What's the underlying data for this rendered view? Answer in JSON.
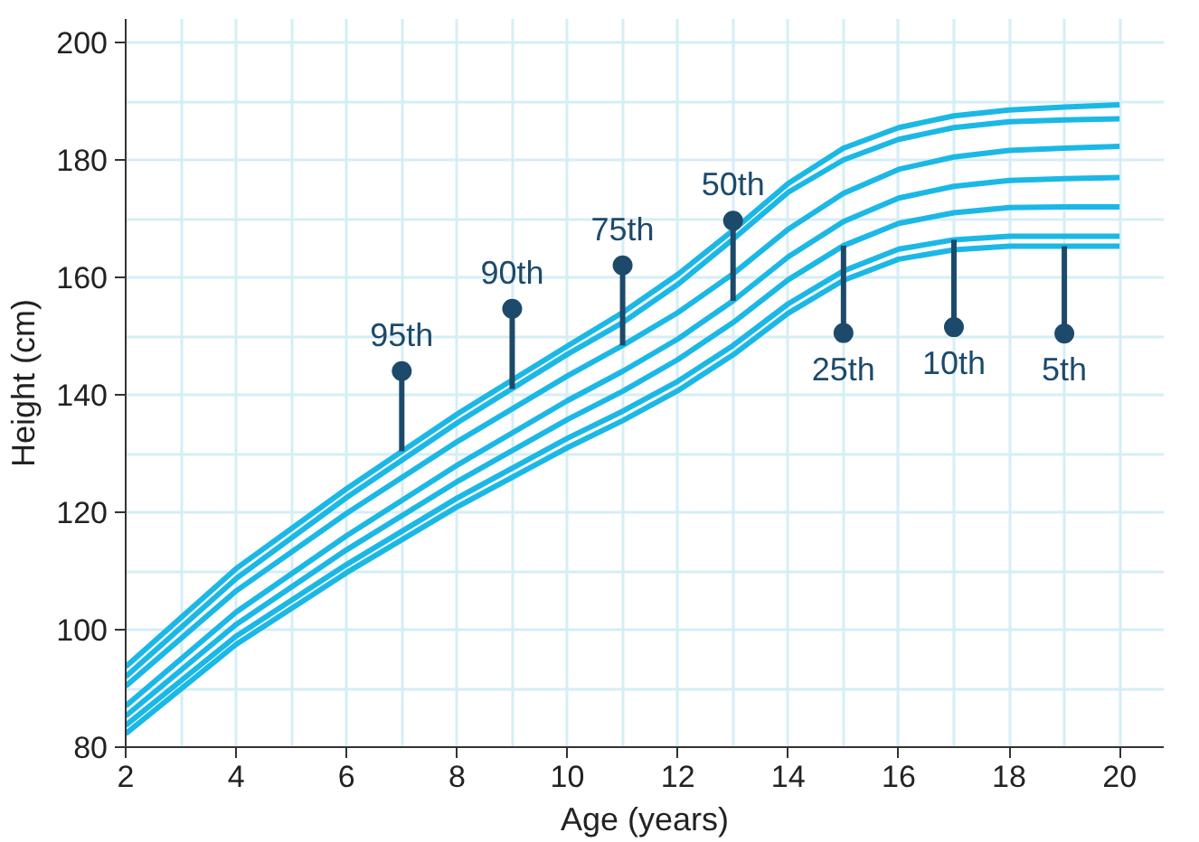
{
  "chart_data": {
    "type": "line",
    "xlabel": "Age (years)",
    "ylabel": "Height (cm)",
    "x": [
      2,
      4,
      6,
      8,
      10,
      11,
      12,
      13,
      14,
      15,
      16,
      17,
      18,
      19,
      20
    ],
    "series": [
      {
        "color": "#1bb8e6",
        "values": [
          93.7,
          110.4,
          124,
          136.7,
          148.3,
          154,
          160.5,
          168,
          176,
          182,
          185.5,
          187.5,
          188.5,
          189,
          189.4
        ]
      },
      {
        "color": "#1bb8e6",
        "values": [
          92,
          108.7,
          122.5,
          135.2,
          146.9,
          152.3,
          158.8,
          166.5,
          174.5,
          180,
          183.5,
          185.5,
          186.5,
          186.8,
          187
        ]
      },
      {
        "color": "#1bb8e6",
        "values": [
          90.4,
          106.6,
          119.8,
          132,
          143.2,
          148.4,
          154,
          160.6,
          168.2,
          174.3,
          178.4,
          180.5,
          181.6,
          182,
          182.3
        ]
      },
      {
        "color": "#1bb8e6",
        "values": [
          87,
          103,
          116,
          128,
          139,
          144,
          149.5,
          156,
          163.5,
          169.5,
          173.5,
          175.5,
          176.5,
          176.8,
          177
        ]
      },
      {
        "color": "#1bb8e6",
        "values": [
          85.3,
          100.9,
          113.6,
          125.2,
          135.8,
          140.6,
          146,
          152.3,
          159.6,
          165.4,
          169.2,
          171,
          171.9,
          172,
          172
        ]
      },
      {
        "color": "#1bb8e6",
        "values": [
          83.7,
          98.9,
          111.1,
          122.4,
          132.6,
          137.2,
          142.3,
          148.4,
          155.5,
          161.1,
          164.8,
          166.4,
          167,
          167,
          167
        ]
      },
      {
        "color": "#1bb8e6",
        "values": [
          82.3,
          97.5,
          109.7,
          120.9,
          131,
          135.6,
          140.7,
          146.8,
          153.9,
          159.5,
          163.1,
          164.7,
          165.3,
          165.3,
          165.3
        ]
      }
    ],
    "annotations": [
      {
        "text": "95th",
        "x": 7,
        "y": 130.4
      },
      {
        "text": "90th",
        "x": 9,
        "y": 141
      },
      {
        "text": "75th",
        "x": 11,
        "y": 148.4
      },
      {
        "text": "50th",
        "x": 13,
        "y": 156
      },
      {
        "text": "25th",
        "x": 15,
        "y": 165.4
      },
      {
        "text": "10th",
        "x": 17,
        "y": 166.4
      },
      {
        "text": "5th",
        "x": 19,
        "y": 165.3
      }
    ],
    "xlim": [
      2,
      20.8
    ],
    "ylim": [
      80,
      204
    ],
    "xticks": [
      2,
      4,
      6,
      8,
      10,
      12,
      14,
      16,
      18,
      20
    ],
    "yticks": [
      80,
      100,
      120,
      140,
      160,
      180,
      200
    ],
    "grid": true
  }
}
